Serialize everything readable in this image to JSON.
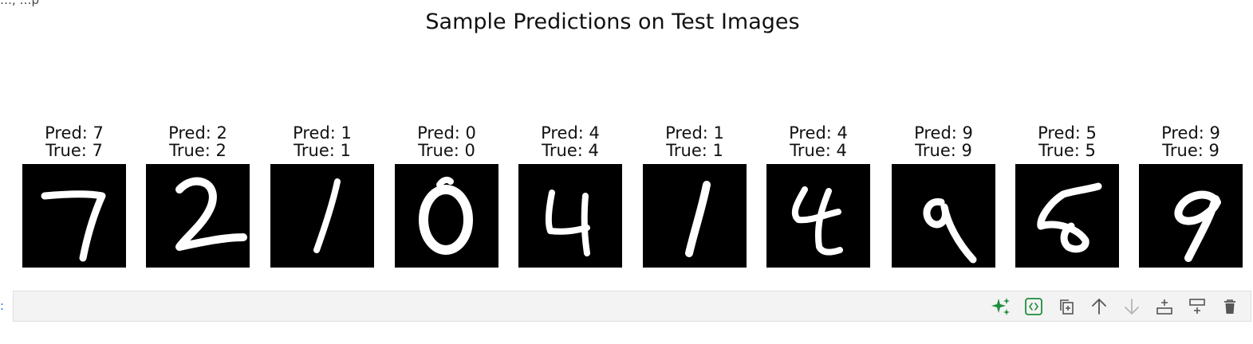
{
  "cutoff_text": "…, …p",
  "figure": {
    "title": "Sample Predictions on Test Images",
    "samples": [
      {
        "pred": "Pred: 7",
        "true": "True: 7"
      },
      {
        "pred": "Pred: 2",
        "true": "True: 2"
      },
      {
        "pred": "Pred: 1",
        "true": "True: 1"
      },
      {
        "pred": "Pred: 0",
        "true": "True: 0"
      },
      {
        "pred": "Pred: 4",
        "true": "True: 4"
      },
      {
        "pred": "Pred: 1",
        "true": "True: 1"
      },
      {
        "pred": "Pred: 4",
        "true": "True: 4"
      },
      {
        "pred": "Pred: 9",
        "true": "True: 9"
      },
      {
        "pred": "Pred: 5",
        "true": "True: 5"
      },
      {
        "pred": "Pred: 9",
        "true": "True: 9"
      }
    ]
  },
  "cell_toolbar": {
    "icons": [
      "sparkle-ai-icon",
      "code-brackets-icon",
      "copy-cell-icon",
      "move-up-icon",
      "move-down-icon",
      "insert-above-icon",
      "split-cell-icon",
      "delete-icon"
    ],
    "accent_color": "#1e8e3e"
  }
}
